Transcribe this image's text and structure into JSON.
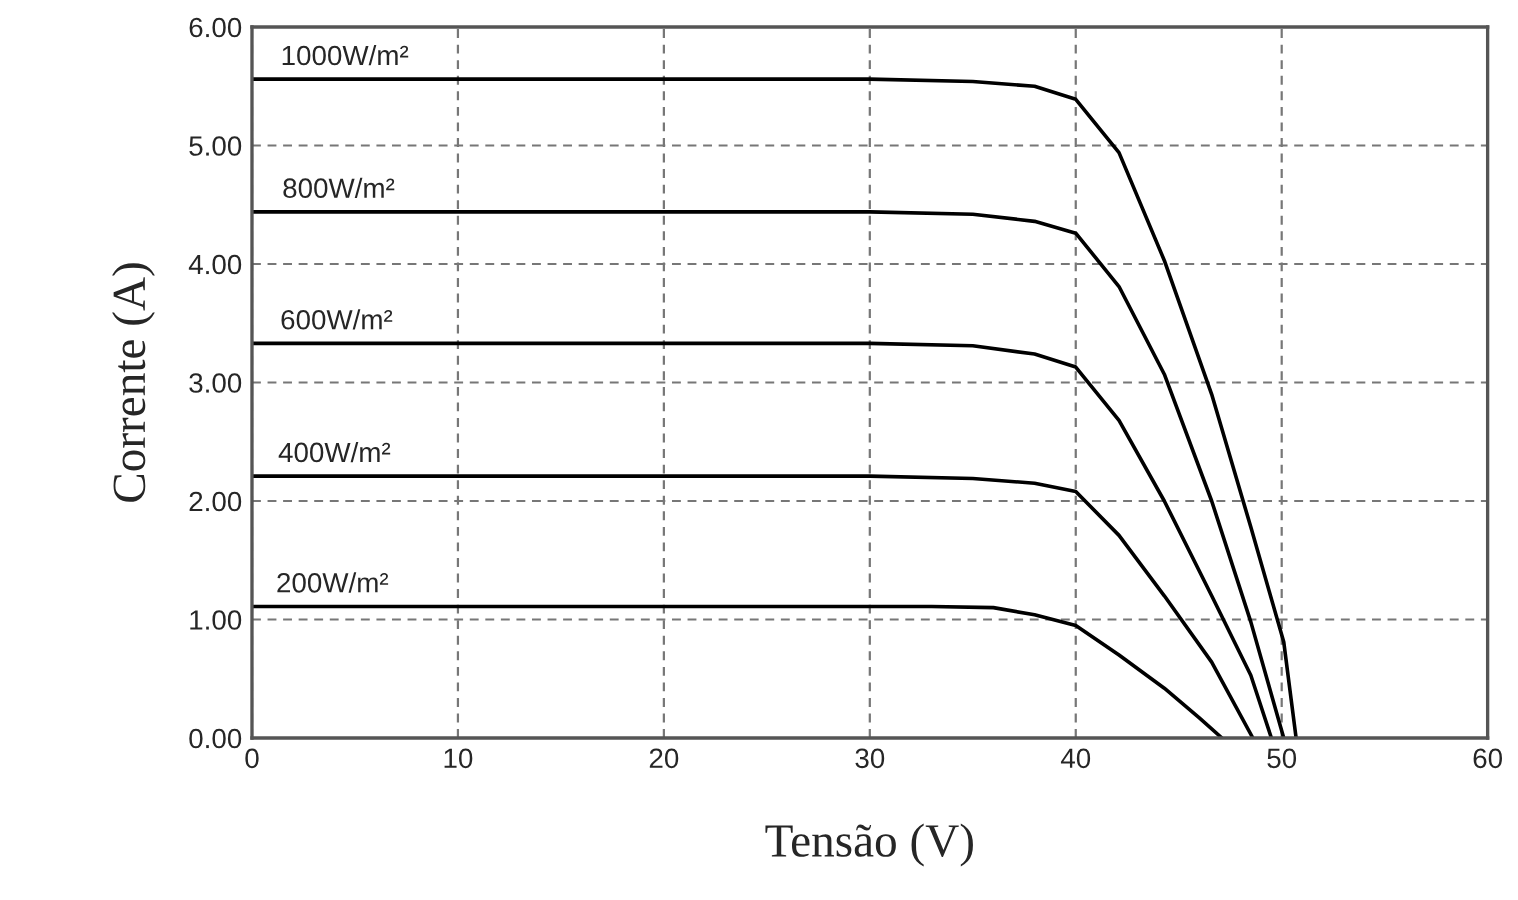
{
  "chart_data": {
    "type": "line",
    "xlabel": "Tensão (V)",
    "ylabel": "Corrente (A)",
    "xlim": [
      0,
      60
    ],
    "xticks": [
      0,
      10,
      20,
      30,
      40,
      50,
      60
    ],
    "ylim": [
      0,
      6
    ],
    "yticks": [
      {
        "value": 0,
        "label": "0.00"
      },
      {
        "value": 1,
        "label": "1.00"
      },
      {
        "value": 2,
        "label": "2.00"
      },
      {
        "value": 3,
        "label": "3.00"
      },
      {
        "value": 4,
        "label": "4.00"
      },
      {
        "value": 5,
        "label": "5.00"
      },
      {
        "value": 6,
        "label": "6.00"
      }
    ],
    "grid": true,
    "legend": false,
    "marker": "none",
    "line_style": "solid",
    "series": [
      {
        "color": "#000000",
        "x": [
          0,
          30,
          35,
          38,
          40,
          42.1,
          44.3,
          46.6,
          48.5,
          50.1,
          50.7
        ],
        "values": [
          5.56,
          5.56,
          5.54,
          5.5,
          5.39,
          4.94,
          4.03,
          2.9,
          1.78,
          0.81,
          0
        ]
      },
      {
        "color": "#000000",
        "x": [
          0,
          30,
          35,
          38,
          40,
          42.1,
          44.3,
          46.6,
          48.5,
          50.1
        ],
        "values": [
          4.44,
          4.44,
          4.42,
          4.36,
          4.26,
          3.81,
          3.07,
          2.0,
          0.98,
          0
        ]
      },
      {
        "color": "#000000",
        "x": [
          0,
          30,
          35,
          38,
          40,
          42.1,
          44.3,
          46.6,
          48.5,
          49.5
        ],
        "values": [
          3.33,
          3.33,
          3.31,
          3.24,
          3.13,
          2.68,
          2.0,
          1.2,
          0.53,
          0
        ]
      },
      {
        "color": "#000000",
        "x": [
          0,
          30,
          35,
          38,
          40,
          42.1,
          44.3,
          46.6,
          48.6
        ],
        "values": [
          2.21,
          2.21,
          2.19,
          2.15,
          2.08,
          1.71,
          1.2,
          0.64,
          0
        ]
      },
      {
        "color": "#000000",
        "x": [
          0,
          30,
          33,
          36,
          38,
          40,
          42.1,
          44.3,
          46,
          47.1
        ],
        "values": [
          1.11,
          1.11,
          1.11,
          1.1,
          1.04,
          0.95,
          0.7,
          0.42,
          0.17,
          0
        ]
      }
    ],
    "annotations": [
      {
        "text": "1000W/m²",
        "x": 4.5,
        "y": 5.56
      },
      {
        "text": "800W/m²",
        "x": 4.2,
        "y": 4.44
      },
      {
        "text": "600W/m²",
        "x": 4.1,
        "y": 3.33
      },
      {
        "text": "400W/m²",
        "x": 4.0,
        "y": 2.21
      },
      {
        "text": "200W/m²",
        "x": 3.9,
        "y": 1.11
      }
    ]
  }
}
